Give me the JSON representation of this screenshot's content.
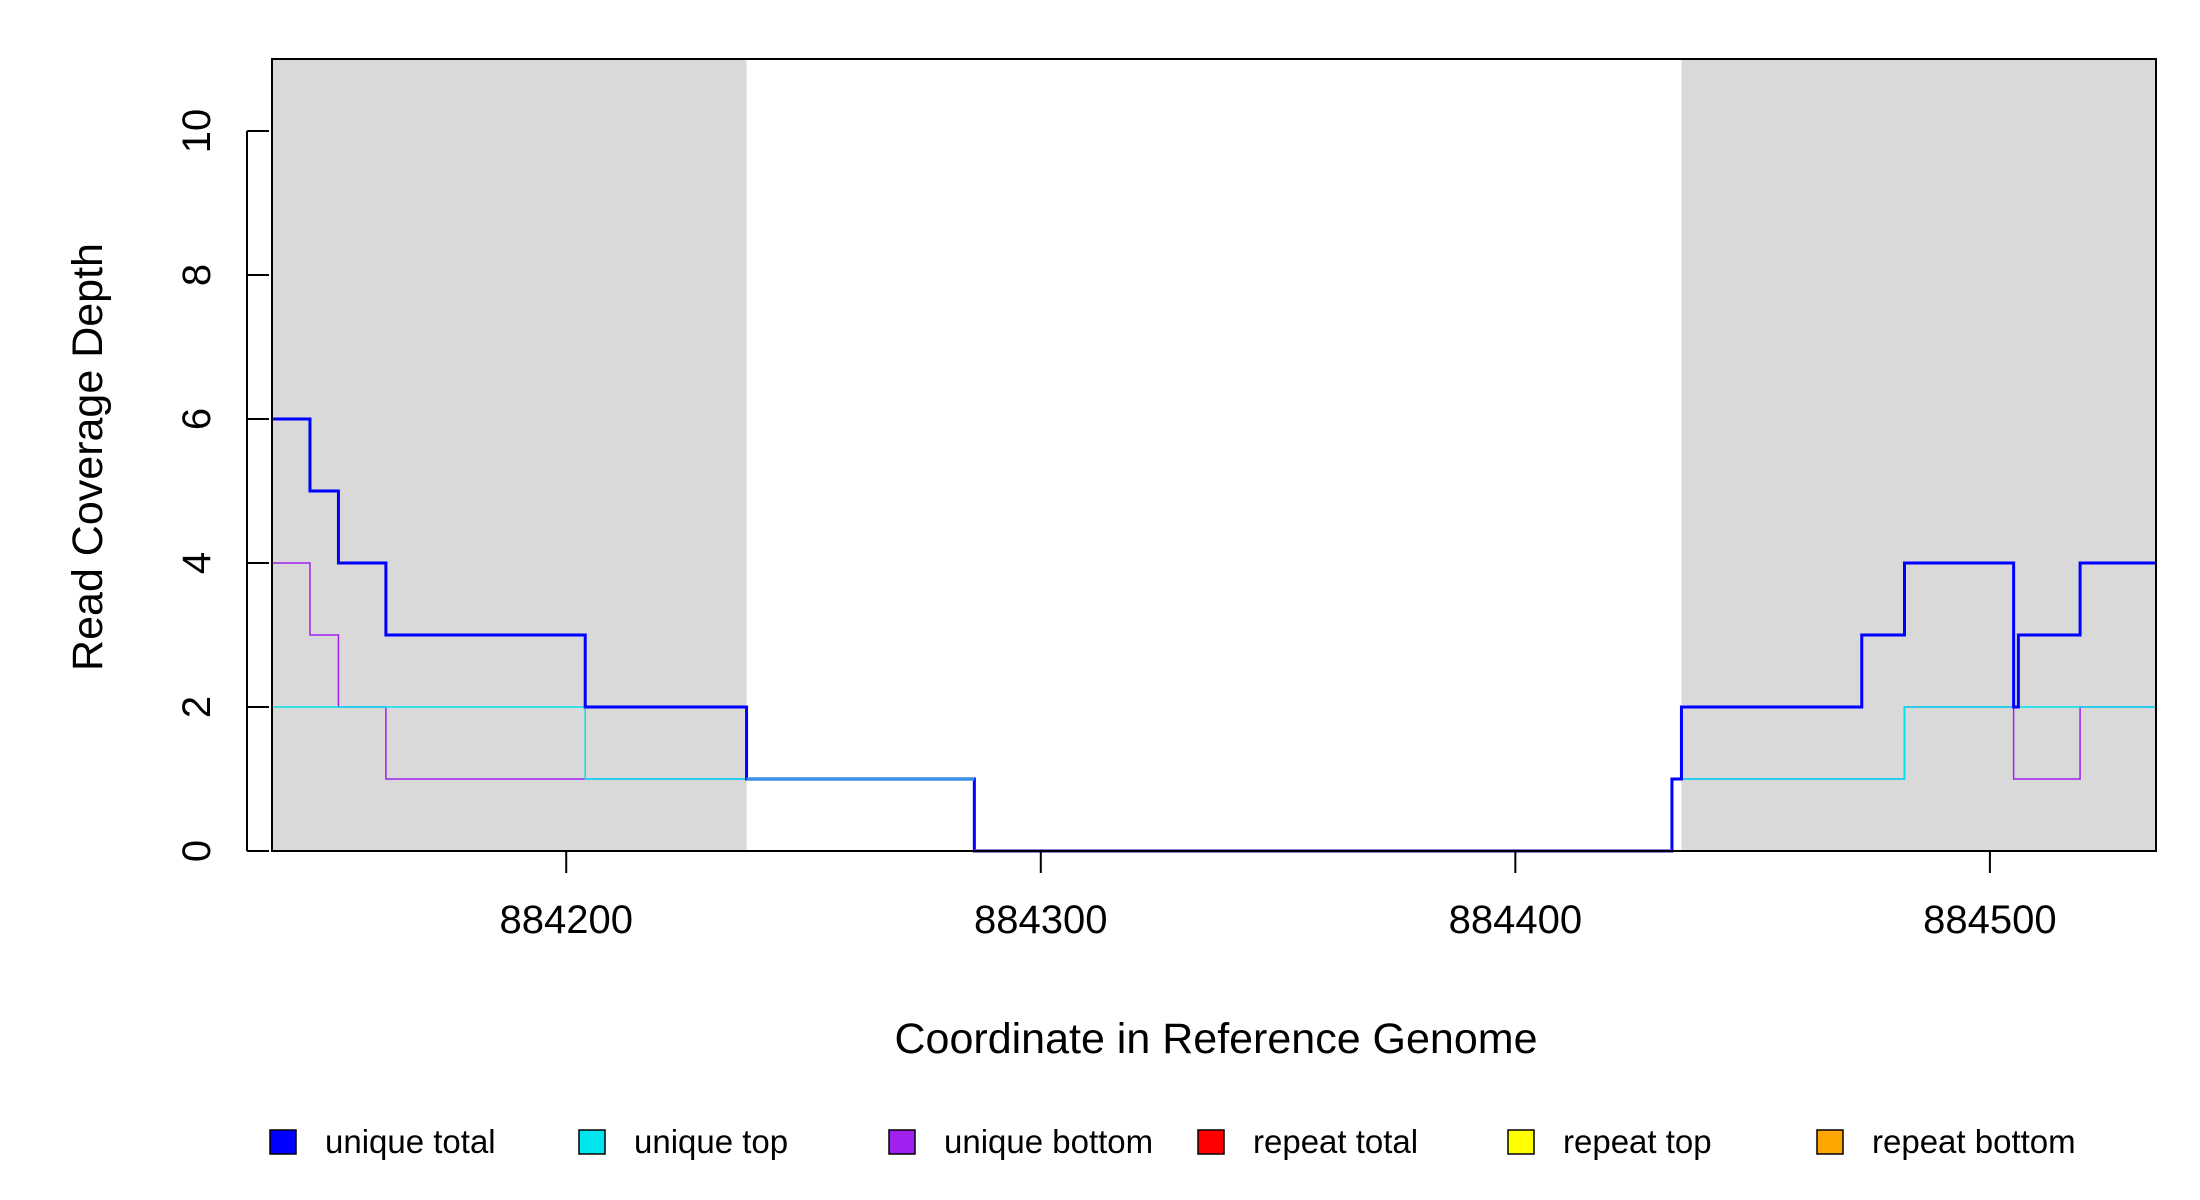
{
  "chart_data": {
    "type": "line",
    "step": true,
    "xlabel": "Coordinate in Reference Genome",
    "ylabel": "Read Coverage Depth",
    "xlim": [
      884138,
      884535
    ],
    "ylim": [
      0,
      11
    ],
    "x_ticks": [
      884200,
      884300,
      884400,
      884500
    ],
    "x_tick_labels": [
      "884200",
      "884300",
      "884400",
      "884500"
    ],
    "y_ticks": [
      0,
      2,
      4,
      6,
      8,
      10
    ],
    "y_tick_labels": [
      "0",
      "2",
      "4",
      "6",
      "8",
      "10"
    ],
    "shaded_regions": [
      [
        884138,
        884238
      ],
      [
        884435,
        884535
      ]
    ],
    "shade_color": "#d9d9d9",
    "legend_position": "bottom",
    "series": [
      {
        "name": "unique total",
        "color": "#0000ff",
        "width": 3,
        "x": [
          884138,
          884146,
          884152,
          884162,
          884204,
          884238,
          884286,
          884433,
          884435,
          884473,
          884482,
          884505,
          884506,
          884519,
          884535
        ],
        "y": [
          6,
          5,
          4,
          3,
          2,
          1,
          0,
          1,
          2,
          3,
          4,
          2,
          3,
          4,
          4
        ]
      },
      {
        "name": "unique top",
        "color": "#00e5ee",
        "width": 1.5,
        "x": [
          884138,
          884204,
          884238,
          884286,
          884433,
          884473,
          884482,
          884506,
          884535
        ],
        "y": [
          2,
          1,
          1,
          0,
          1,
          1,
          2,
          2,
          2
        ]
      },
      {
        "name": "unique bottom",
        "color": "#a020f0",
        "width": 1.5,
        "x": [
          884138,
          884146,
          884152,
          884162,
          884238,
          884286,
          884433,
          884435,
          884482,
          884505,
          884519,
          884535
        ],
        "y": [
          4,
          3,
          2,
          1,
          1,
          0,
          1,
          1,
          2,
          1,
          2,
          2
        ]
      },
      {
        "name": "repeat total",
        "color": "#ff0000",
        "width": 1.5,
        "x": [
          884138,
          884535
        ],
        "y": [
          0,
          0
        ]
      },
      {
        "name": "repeat top",
        "color": "#ffff00",
        "width": 1.5,
        "x": [
          884138,
          884535
        ],
        "y": [
          0,
          0
        ]
      },
      {
        "name": "repeat bottom",
        "color": "#ffa500",
        "width": 1.5,
        "x": [
          884138,
          884535
        ],
        "y": [
          0,
          0
        ]
      }
    ],
    "overlap_segments": [
      {
        "x": [
          884238,
          884286
        ],
        "y": 1,
        "color": "#3a8ee6"
      },
      {
        "x": [
          884286,
          884433
        ],
        "y": 0,
        "color": "#6a50c8"
      }
    ]
  }
}
